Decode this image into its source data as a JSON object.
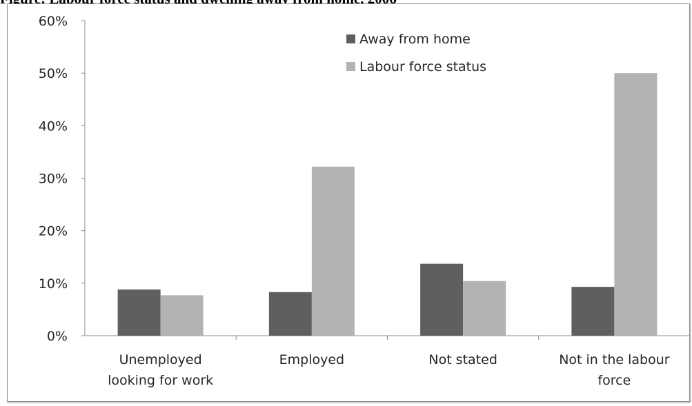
{
  "caption": {
    "text": "Figure: Labour force status and dwelling away from home, 2006"
  },
  "chart_data": {
    "type": "bar",
    "title": "",
    "xlabel": "",
    "ylabel": "",
    "ylim": [
      0,
      60
    ],
    "yticks": [
      "0%",
      "10%",
      "20%",
      "30%",
      "40%",
      "50%",
      "60%"
    ],
    "legend_position": "top-center",
    "grid": false,
    "categories": [
      [
        "Unemployed",
        "looking for work"
      ],
      [
        "Employed"
      ],
      [
        "Not stated"
      ],
      [
        "Not in the labour",
        "force"
      ]
    ],
    "series": [
      {
        "name": "Away from home",
        "color": "#5f5f5f",
        "values": [
          8.8,
          8.3,
          13.7,
          9.3
        ]
      },
      {
        "name": "Labour force status",
        "color": "#b3b3b3",
        "values": [
          7.7,
          32.2,
          10.4,
          50.0
        ]
      }
    ]
  }
}
